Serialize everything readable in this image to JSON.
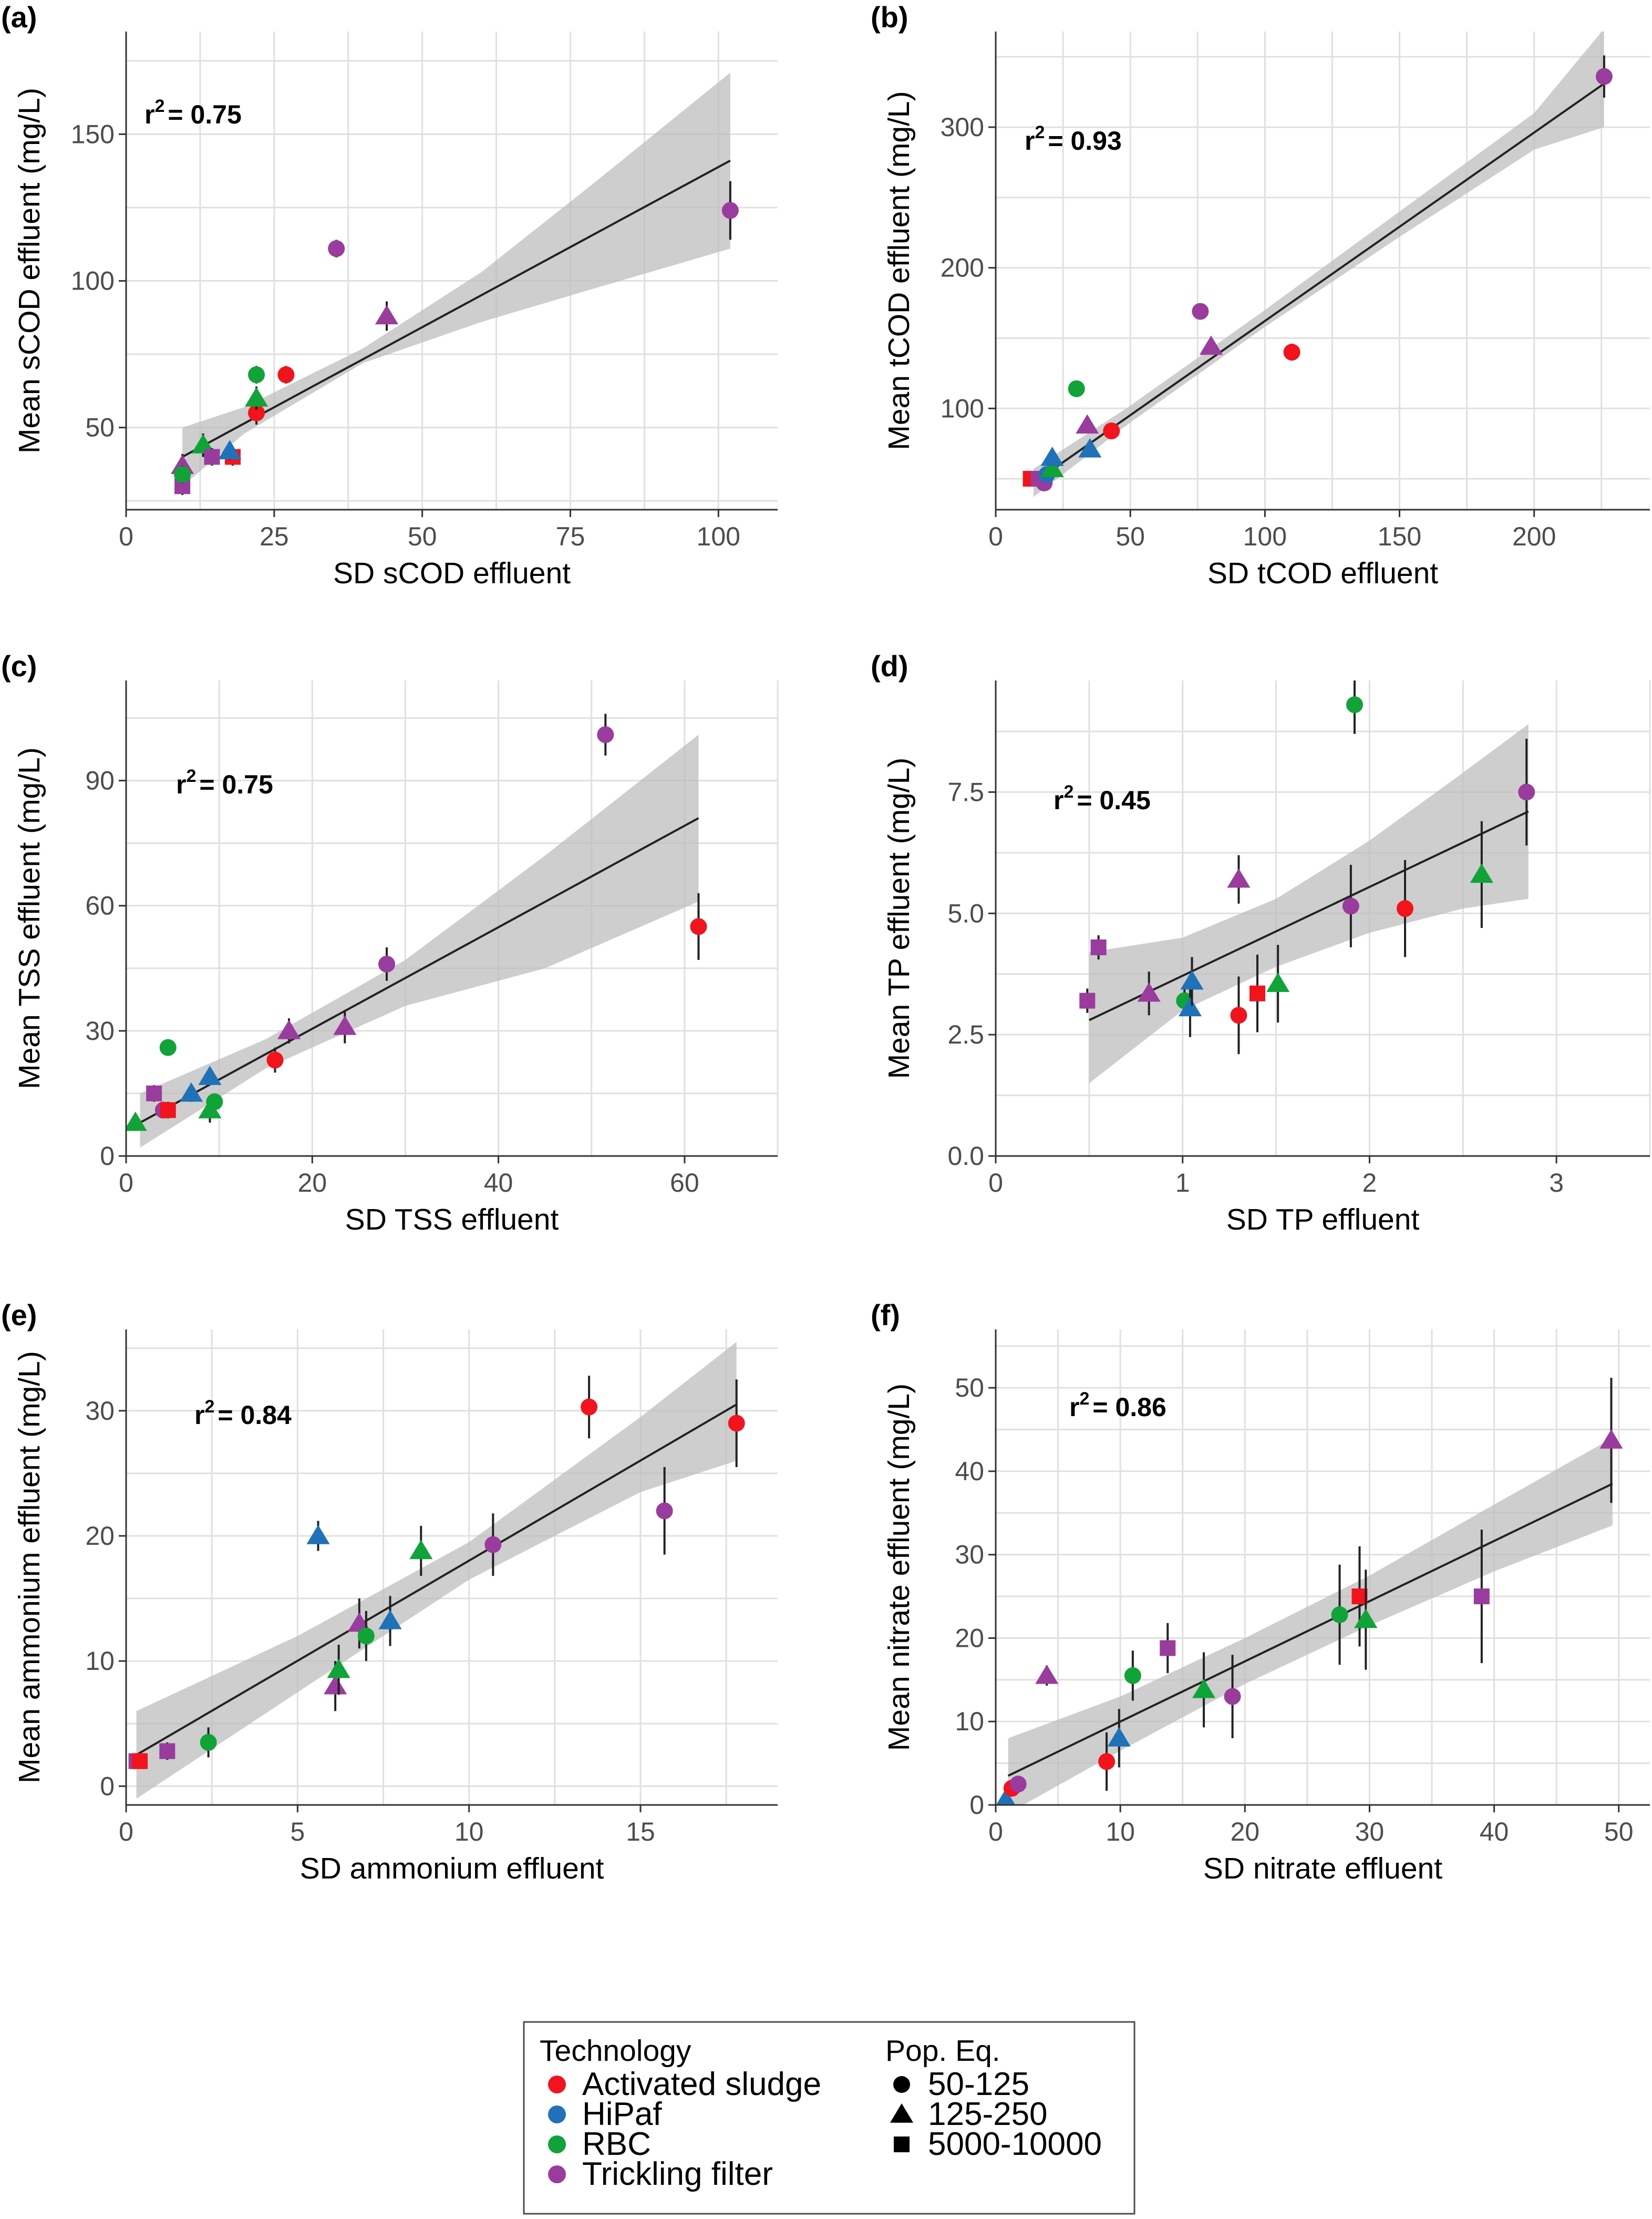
{
  "colors": {
    "Activated sludge": "#f2141c",
    "HiPaf": "#1f72b8",
    "RBC": "#10a438",
    "Trickling filter": "#9a3c9e",
    "band": "#bdbdbd",
    "grid": "#e0e0e0",
    "fit": "#222222"
  },
  "legend": {
    "technology_title": "Technology",
    "technology": [
      "Activated sludge",
      "HiPaf",
      "RBC",
      "Trickling filter"
    ],
    "popeq_title": "Pop. Eq.",
    "popeq": [
      {
        "label": "50-125",
        "shape": "circle"
      },
      {
        "label": "125-250",
        "shape": "triangle"
      },
      {
        "label": "5000-10000",
        "shape": "square"
      }
    ]
  },
  "chart_data": [
    {
      "type": "scatter",
      "panel_label": "(a)",
      "r2_label": "= 0.75",
      "xlabel": "SD sCOD effluent",
      "ylabel": "Mean sCOD effluent (mg/L)",
      "xlim": [
        0,
        110
      ],
      "ylim": [
        22,
        185
      ],
      "xticks": [
        0,
        25,
        50,
        75,
        100
      ],
      "yticks": [
        50,
        100,
        150
      ],
      "fit": {
        "x0": 9.5,
        "y0": 40,
        "x1": 102,
        "y1": 141
      },
      "band": [
        [
          9.5,
          30,
          50
        ],
        [
          20,
          48,
          57
        ],
        [
          40,
          72,
          77
        ],
        [
          60,
          86,
          103
        ],
        [
          80,
          98,
          135
        ],
        [
          102,
          111,
          171
        ]
      ],
      "points": [
        {
          "x": 9.5,
          "y": 37,
          "tech": "Trickling filter",
          "pop": "triangle",
          "err": 4
        },
        {
          "x": 9.5,
          "y": 30,
          "tech": "Trickling filter",
          "pop": "square",
          "err": 3
        },
        {
          "x": 9.5,
          "y": 34,
          "tech": "RBC",
          "pop": "circle",
          "err": 3
        },
        {
          "x": 13,
          "y": 44,
          "tech": "RBC",
          "pop": "triangle",
          "err": 4
        },
        {
          "x": 14.5,
          "y": 40,
          "tech": "Trickling filter",
          "pop": "square",
          "err": 3
        },
        {
          "x": 18,
          "y": 40,
          "tech": "Activated sludge",
          "pop": "square",
          "err": 3
        },
        {
          "x": 17.5,
          "y": 42,
          "tech": "HiPaf",
          "pop": "triangle",
          "err": 3
        },
        {
          "x": 22,
          "y": 55,
          "tech": "Activated sludge",
          "pop": "circle",
          "err": 4
        },
        {
          "x": 22,
          "y": 60,
          "tech": "RBC",
          "pop": "triangle",
          "err": 4
        },
        {
          "x": 22,
          "y": 68,
          "tech": "RBC",
          "pop": "circle",
          "err": 3
        },
        {
          "x": 27,
          "y": 68,
          "tech": "Activated sludge",
          "pop": "circle",
          "err": 3
        },
        {
          "x": 35.5,
          "y": 111,
          "tech": "Trickling filter",
          "pop": "circle",
          "err": 3
        },
        {
          "x": 44,
          "y": 88,
          "tech": "Trickling filter",
          "pop": "triangle",
          "err": 5
        },
        {
          "x": 102,
          "y": 124,
          "tech": "Trickling filter",
          "pop": "circle",
          "err": 10
        }
      ]
    },
    {
      "type": "scatter",
      "panel_label": "(b)",
      "r2_label": "= 0.93",
      "xlabel": "SD tCOD effluent",
      "ylabel": "Mean tCOD effluent (mg/L)",
      "xlim": [
        0,
        243
      ],
      "ylim": [
        28,
        368
      ],
      "xticks": [
        0,
        50,
        100,
        150,
        200
      ],
      "yticks": [
        100,
        200,
        300
      ],
      "fit": {
        "x0": 14,
        "y0": 47,
        "x1": 226,
        "y1": 331
      },
      "band": [
        [
          14,
          37,
          57
        ],
        [
          50,
          90,
          102
        ],
        [
          100,
          158,
          170
        ],
        [
          150,
          222,
          240
        ],
        [
          200,
          284,
          310
        ],
        [
          226,
          300,
          370
        ]
      ],
      "points": [
        {
          "x": 13,
          "y": 50,
          "tech": "Activated sludge",
          "pop": "square",
          "err": 3
        },
        {
          "x": 16,
          "y": 50,
          "tech": "Trickling filter",
          "pop": "square",
          "err": 3
        },
        {
          "x": 18,
          "y": 47,
          "tech": "Trickling filter",
          "pop": "circle",
          "err": 3
        },
        {
          "x": 19,
          "y": 53,
          "tech": "HiPaf",
          "pop": "circle",
          "err": 3
        },
        {
          "x": 21,
          "y": 57,
          "tech": "RBC",
          "pop": "triangle",
          "err": 3
        },
        {
          "x": 21,
          "y": 65,
          "tech": "HiPaf",
          "pop": "triangle",
          "err": 4
        },
        {
          "x": 30,
          "y": 114,
          "tech": "RBC",
          "pop": "circle",
          "err": 3
        },
        {
          "x": 34,
          "y": 88,
          "tech": "Trickling filter",
          "pop": "triangle",
          "err": 4
        },
        {
          "x": 35,
          "y": 71,
          "tech": "HiPaf",
          "pop": "triangle",
          "err": 4
        },
        {
          "x": 43,
          "y": 84,
          "tech": "Activated sludge",
          "pop": "circle",
          "err": 4
        },
        {
          "x": 76,
          "y": 169,
          "tech": "Trickling filter",
          "pop": "circle",
          "err": 4
        },
        {
          "x": 80,
          "y": 144,
          "tech": "Trickling filter",
          "pop": "triangle",
          "err": 4
        },
        {
          "x": 110,
          "y": 140,
          "tech": "Activated sludge",
          "pop": "circle",
          "err": 6
        },
        {
          "x": 226,
          "y": 336,
          "tech": "Trickling filter",
          "pop": "circle",
          "err": 15
        }
      ]
    },
    {
      "type": "scatter",
      "panel_label": "(c)",
      "r2_label": "= 0.75",
      "xlabel": "SD TSS effluent",
      "ylabel": "Mean TSS effluent (mg/L)",
      "xlim": [
        0,
        70
      ],
      "ylim": [
        0,
        114
      ],
      "xticks": [
        0,
        20,
        40,
        60
      ],
      "yticks": [
        0,
        30,
        60,
        90
      ],
      "fit": {
        "x0": 1.5,
        "y0": 8,
        "x1": 61.5,
        "y1": 81
      },
      "band": [
        [
          1.5,
          2,
          15
        ],
        [
          15,
          21,
          28
        ],
        [
          30,
          36,
          47
        ],
        [
          45,
          45,
          72
        ],
        [
          61.5,
          61,
          101
        ]
      ],
      "points": [
        {
          "x": 1,
          "y": 8,
          "tech": "RBC",
          "pop": "triangle",
          "err": 2
        },
        {
          "x": 3,
          "y": 15,
          "tech": "Trickling filter",
          "pop": "square",
          "err": 2
        },
        {
          "x": 4,
          "y": 11,
          "tech": "Trickling filter",
          "pop": "circle",
          "err": 2
        },
        {
          "x": 4.5,
          "y": 11,
          "tech": "Activated sludge",
          "pop": "square",
          "err": 2
        },
        {
          "x": 4.5,
          "y": 26,
          "tech": "RBC",
          "pop": "circle",
          "err": 2
        },
        {
          "x": 7,
          "y": 15,
          "tech": "HiPaf",
          "pop": "triangle",
          "err": 2
        },
        {
          "x": 9,
          "y": 11,
          "tech": "RBC",
          "pop": "triangle",
          "err": 3
        },
        {
          "x": 9.5,
          "y": 13,
          "tech": "RBC",
          "pop": "circle",
          "err": 2
        },
        {
          "x": 9,
          "y": 19,
          "tech": "HiPaf",
          "pop": "triangle",
          "err": 2
        },
        {
          "x": 16,
          "y": 23,
          "tech": "Activated sludge",
          "pop": "circle",
          "err": 3
        },
        {
          "x": 17.5,
          "y": 30,
          "tech": "Trickling filter",
          "pop": "triangle",
          "err": 3
        },
        {
          "x": 23.5,
          "y": 31,
          "tech": "Trickling filter",
          "pop": "triangle",
          "err": 4
        },
        {
          "x": 28,
          "y": 46,
          "tech": "Trickling filter",
          "pop": "circle",
          "err": 4
        },
        {
          "x": 51.5,
          "y": 101,
          "tech": "Trickling filter",
          "pop": "circle",
          "err": 5
        },
        {
          "x": 61.5,
          "y": 55,
          "tech": "Activated sludge",
          "pop": "circle",
          "err": 8
        }
      ]
    },
    {
      "type": "scatter",
      "panel_label": "(d)",
      "r2_label": "= 0.45",
      "xlabel": "SD TP effluent",
      "ylabel": "Mean TP effluent (mg/L)",
      "xlim": [
        0,
        3.5
      ],
      "ylim": [
        0,
        9.8
      ],
      "xticks": [
        0,
        1,
        2,
        3
      ],
      "yticks": [
        0.0,
        2.5,
        5.0,
        7.5
      ],
      "tick_labels_y": [
        "0.0",
        "2.5",
        "5.0",
        "7.5"
      ],
      "fit": {
        "x0": 0.5,
        "y0": 2.8,
        "x1": 2.85,
        "y1": 7.1
      },
      "band": [
        [
          0.5,
          1.5,
          4.2
        ],
        [
          1.0,
          3.0,
          4.5
        ],
        [
          1.5,
          3.9,
          5.3
        ],
        [
          2.0,
          4.6,
          6.5
        ],
        [
          2.5,
          5.1,
          7.9
        ],
        [
          2.85,
          5.3,
          8.9
        ]
      ],
      "points": [
        {
          "x": 0.49,
          "y": 3.2,
          "tech": "Trickling filter",
          "pop": "square",
          "err": 0.25
        },
        {
          "x": 0.55,
          "y": 4.3,
          "tech": "Trickling filter",
          "pop": "square",
          "err": 0.25
        },
        {
          "x": 0.82,
          "y": 3.35,
          "tech": "Trickling filter",
          "pop": "triangle",
          "err": 0.45
        },
        {
          "x": 1.01,
          "y": 3.2,
          "tech": "RBC",
          "pop": "circle",
          "err": 0.3
        },
        {
          "x": 1.04,
          "y": 3.05,
          "tech": "HiPaf",
          "pop": "triangle",
          "err": 0.6
        },
        {
          "x": 1.05,
          "y": 3.6,
          "tech": "HiPaf",
          "pop": "triangle",
          "err": 0.5
        },
        {
          "x": 1.3,
          "y": 2.9,
          "tech": "Activated sludge",
          "pop": "circle",
          "err": 0.8
        },
        {
          "x": 1.3,
          "y": 5.7,
          "tech": "Trickling filter",
          "pop": "triangle",
          "err": 0.5
        },
        {
          "x": 1.4,
          "y": 3.35,
          "tech": "Activated sludge",
          "pop": "square",
          "err": 0.8
        },
        {
          "x": 1.51,
          "y": 3.55,
          "tech": "RBC",
          "pop": "triangle",
          "err": 0.8
        },
        {
          "x": 1.9,
          "y": 5.15,
          "tech": "Trickling filter",
          "pop": "circle",
          "err": 0.85
        },
        {
          "x": 1.92,
          "y": 9.3,
          "tech": "RBC",
          "pop": "circle",
          "err": 0.6
        },
        {
          "x": 2.19,
          "y": 5.1,
          "tech": "Activated sludge",
          "pop": "circle",
          "err": 1.0
        },
        {
          "x": 2.6,
          "y": 5.8,
          "tech": "RBC",
          "pop": "triangle",
          "err": 1.1
        },
        {
          "x": 2.84,
          "y": 7.5,
          "tech": "Trickling filter",
          "pop": "circle",
          "err": 1.1
        }
      ]
    },
    {
      "type": "scatter",
      "panel_label": "(e)",
      "r2_label": "= 0.84",
      "xlabel": "SD ammonium effluent",
      "ylabel": "Mean ammonium effluent (mg/L)",
      "xlim": [
        0,
        19
      ],
      "ylim": [
        -1.5,
        36.5
      ],
      "xticks": [
        0,
        5,
        10,
        15
      ],
      "yticks": [
        0,
        10,
        20,
        30
      ],
      "fit": {
        "x0": 0.3,
        "y0": 2.5,
        "x1": 17.8,
        "y1": 30.5
      },
      "band": [
        [
          0.3,
          -1.0,
          6.0
        ],
        [
          5,
          7.5,
          12
        ],
        [
          10,
          16.5,
          19.5
        ],
        [
          15,
          23.5,
          29.5
        ],
        [
          17.8,
          26,
          35.5
        ]
      ],
      "points": [
        {
          "x": 0.3,
          "y": 2,
          "tech": "Trickling filter",
          "pop": "square",
          "err": 0.6
        },
        {
          "x": 0.4,
          "y": 2,
          "tech": "Activated sludge",
          "pop": "square",
          "err": 0.6
        },
        {
          "x": 1.2,
          "y": 2.8,
          "tech": "Trickling filter",
          "pop": "square",
          "err": 0.7
        },
        {
          "x": 2.4,
          "y": 3.5,
          "tech": "RBC",
          "pop": "circle",
          "err": 1.2
        },
        {
          "x": 5.6,
          "y": 20,
          "tech": "HiPaf",
          "pop": "triangle",
          "err": 1.2
        },
        {
          "x": 6.1,
          "y": 8.0,
          "tech": "Trickling filter",
          "pop": "triangle",
          "err": 2
        },
        {
          "x": 6.2,
          "y": 9.3,
          "tech": "RBC",
          "pop": "triangle",
          "err": 2
        },
        {
          "x": 6.8,
          "y": 13,
          "tech": "Trickling filter",
          "pop": "triangle",
          "err": 2
        },
        {
          "x": 7.0,
          "y": 12,
          "tech": "RBC",
          "pop": "circle",
          "err": 2
        },
        {
          "x": 7.7,
          "y": 13.2,
          "tech": "HiPaf",
          "pop": "triangle",
          "err": 2
        },
        {
          "x": 8.6,
          "y": 18.8,
          "tech": "RBC",
          "pop": "triangle",
          "err": 2
        },
        {
          "x": 10.7,
          "y": 19.3,
          "tech": "Trickling filter",
          "pop": "circle",
          "err": 2.5
        },
        {
          "x": 13.5,
          "y": 30.3,
          "tech": "Activated sludge",
          "pop": "circle",
          "err": 2.5
        },
        {
          "x": 15.7,
          "y": 22,
          "tech": "Trickling filter",
          "pop": "circle",
          "err": 3.5
        },
        {
          "x": 17.8,
          "y": 29,
          "tech": "Activated sludge",
          "pop": "circle",
          "err": 3.5
        }
      ]
    },
    {
      "type": "scatter",
      "panel_label": "(f)",
      "r2_label": "= 0.86",
      "xlabel": "SD nitrate effluent",
      "ylabel": "Mean nitrate effluent (mg/L)",
      "xlim": [
        0,
        52.5
      ],
      "ylim": [
        0,
        57
      ],
      "xticks": [
        0,
        10,
        20,
        30,
        40,
        50
      ],
      "yticks": [
        0,
        10,
        20,
        30,
        40,
        50
      ],
      "fit": {
        "x0": 1,
        "y0": 3.5,
        "x1": 49.5,
        "y1": 38.5
      },
      "band": [
        [
          1,
          -1,
          8
        ],
        [
          10,
          6.5,
          13
        ],
        [
          20,
          14.5,
          20
        ],
        [
          30,
          21.5,
          27.5
        ],
        [
          40,
          28,
          36
        ],
        [
          49.5,
          33.5,
          44
        ]
      ],
      "points": [
        {
          "x": 0.8,
          "y": 0.6,
          "tech": "HiPaf",
          "pop": "triangle",
          "err": 0.5
        },
        {
          "x": 1.3,
          "y": 2,
          "tech": "Activated sludge",
          "pop": "circle",
          "err": 0.8
        },
        {
          "x": 1.8,
          "y": 2.5,
          "tech": "Trickling filter",
          "pop": "circle",
          "err": 0.8
        },
        {
          "x": 4.1,
          "y": 15.5,
          "tech": "Trickling filter",
          "pop": "triangle",
          "err": 1.2
        },
        {
          "x": 8.9,
          "y": 5.2,
          "tech": "Activated sludge",
          "pop": "circle",
          "err": 3.5
        },
        {
          "x": 9.9,
          "y": 8.0,
          "tech": "HiPaf",
          "pop": "triangle",
          "err": 3.5
        },
        {
          "x": 11,
          "y": 15.5,
          "tech": "RBC",
          "pop": "circle",
          "err": 3
        },
        {
          "x": 13.8,
          "y": 18.8,
          "tech": "Trickling filter",
          "pop": "square",
          "err": 3
        },
        {
          "x": 16.7,
          "y": 13.8,
          "tech": "RBC",
          "pop": "triangle",
          "err": 4.5
        },
        {
          "x": 19,
          "y": 13,
          "tech": "Trickling filter",
          "pop": "circle",
          "err": 5
        },
        {
          "x": 27.6,
          "y": 22.8,
          "tech": "RBC",
          "pop": "circle",
          "err": 6
        },
        {
          "x": 29.2,
          "y": 25,
          "tech": "Activated sludge",
          "pop": "square",
          "err": 6
        },
        {
          "x": 29.7,
          "y": 22.2,
          "tech": "RBC",
          "pop": "triangle",
          "err": 6
        },
        {
          "x": 39,
          "y": 25,
          "tech": "Trickling filter",
          "pop": "square",
          "err": 8
        },
        {
          "x": 49.4,
          "y": 43.7,
          "tech": "Trickling filter",
          "pop": "triangle",
          "err": 7.5
        }
      ]
    }
  ]
}
